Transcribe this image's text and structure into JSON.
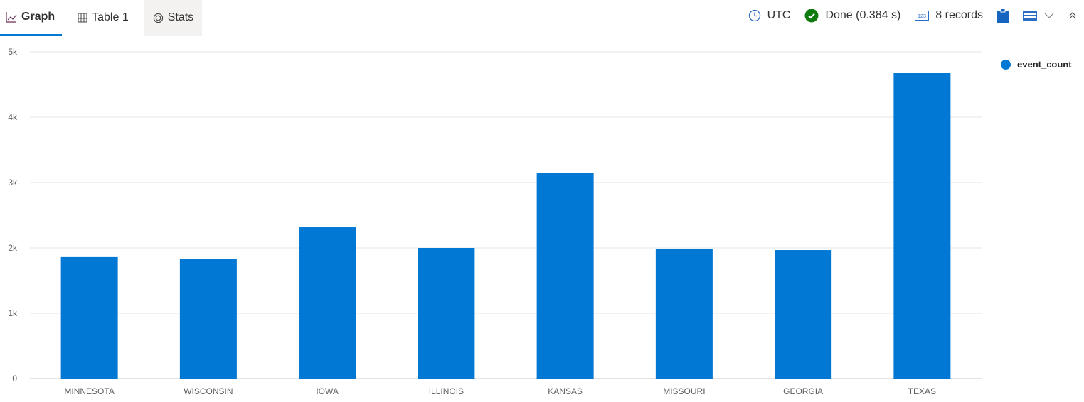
{
  "tabs": [
    {
      "label": "Graph",
      "icon": "line-chart-icon"
    },
    {
      "label": "Table 1",
      "icon": "table-icon"
    },
    {
      "label": "Stats",
      "icon": "target-icon"
    }
  ],
  "toolbar": {
    "timezone": "UTC",
    "status": "Done (0.384 s)",
    "records": "8 records",
    "colors": {
      "accent": "#0078d4",
      "success": "#107c10"
    }
  },
  "chart_data": {
    "type": "bar",
    "categories": [
      "MINNESOTA",
      "WISCONSIN",
      "IOWA",
      "ILLINOIS",
      "KANSAS",
      "MISSOURI",
      "GEORGIA",
      "TEXAS"
    ],
    "series": [
      {
        "name": "event_count",
        "values": [
          1860,
          1837,
          2315,
          2000,
          3152,
          1989,
          1967,
          4674
        ],
        "color": "#0078d4"
      }
    ],
    "yticks": [
      "0",
      "1k",
      "2k",
      "3k",
      "4k",
      "5k"
    ],
    "ylim": [
      0,
      5000
    ],
    "grid": true,
    "legend": "top-right"
  }
}
